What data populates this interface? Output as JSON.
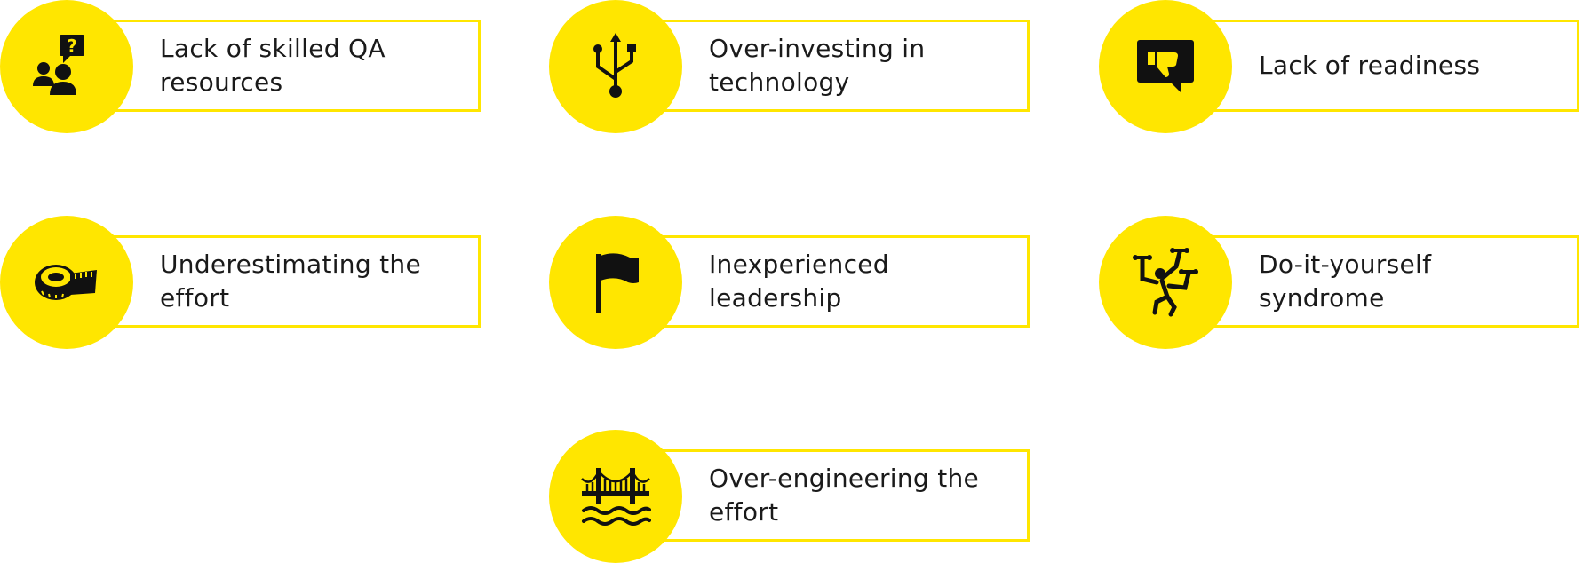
{
  "accent_color": "#FFE600",
  "items": [
    {
      "label": "Lack of skilled QA\nresources",
      "icon": "people-question-icon"
    },
    {
      "label": "Over-investing in\ntechnology",
      "icon": "usb-icon"
    },
    {
      "label": "Lack of readiness",
      "icon": "thumbs-down-speech-bubble-icon"
    },
    {
      "label": "Underestimating the\neffort",
      "icon": "measuring-tape-icon"
    },
    {
      "label": "Inexperienced\nleadership",
      "icon": "flag-icon"
    },
    {
      "label": "Do-it-yourself\nsyndrome",
      "icon": "juggling-person-icon"
    },
    {
      "label": "Over-engineering the\neffort",
      "icon": "bridge-icon"
    }
  ]
}
